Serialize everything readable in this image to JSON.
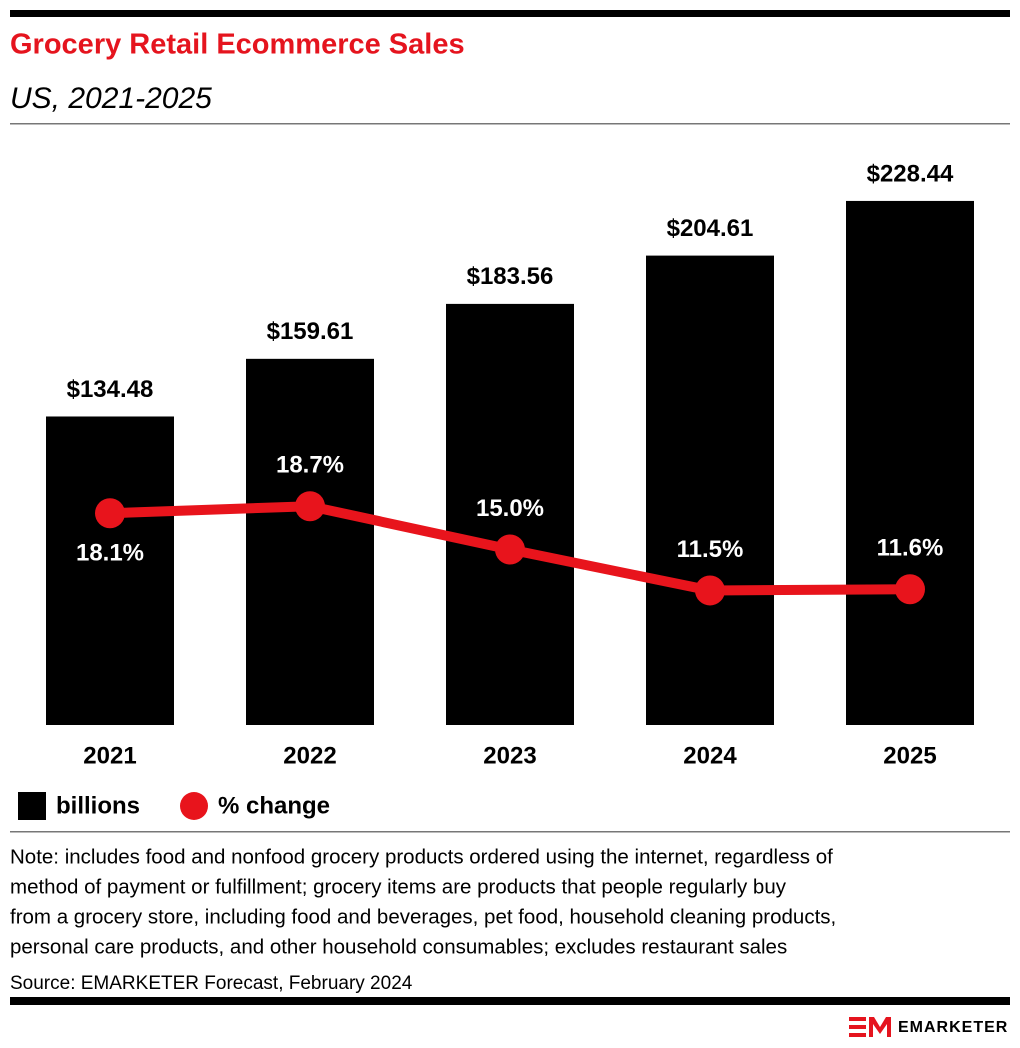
{
  "chart_data": {
    "type": "combo",
    "title": "Grocery Retail Ecommerce Sales",
    "subtitle": "US, 2021-2025",
    "categories": [
      "2021",
      "2022",
      "2023",
      "2024",
      "2025"
    ],
    "series": [
      {
        "name": "billions",
        "type": "bar",
        "color": "#000000",
        "values": [
          134.48,
          159.61,
          183.56,
          204.61,
          228.44
        ],
        "value_labels": [
          "$134.48",
          "$159.61",
          "$183.56",
          "$204.61",
          "$228.44"
        ]
      },
      {
        "name": "% change",
        "type": "line",
        "axis": "y2",
        "color": "#e8141c",
        "values": [
          18.1,
          18.7,
          15.0,
          11.5,
          11.6
        ],
        "value_labels": [
          "18.1%",
          "18.7%",
          "15.0%",
          "11.5%",
          "11.6%"
        ]
      }
    ],
    "ylim": [
      0,
      255
    ],
    "y2lim": [
      0,
      50
    ],
    "grid": false,
    "legend": "bottom-left",
    "note": [
      "Note: includes food and nonfood grocery products ordered using the internet, regardless of",
      "method of payment or fulfillment; grocery items are products that people regularly buy",
      "from a grocery store, including food and beverages, pet food, household cleaning products,",
      "personal care products, and other household consumables; excludes restaurant sales"
    ],
    "source": "Source: EMARKETER Forecast, February 2024",
    "brand": "EMARKETER"
  }
}
